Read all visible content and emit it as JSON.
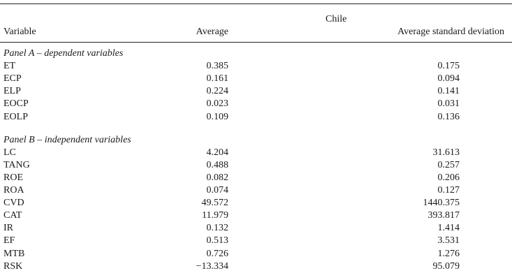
{
  "table": {
    "group": "Chile",
    "columns": [
      "Variable",
      "Average",
      "Average standard deviation"
    ],
    "panels": [
      {
        "title": "Panel A – dependent variables",
        "rows": [
          [
            "ET",
            "0.385",
            "0.175"
          ],
          [
            "ECP",
            "0.161",
            "0.094"
          ],
          [
            "ELP",
            "0.224",
            "0.141"
          ],
          [
            "EOCP",
            "0.023",
            "0.031"
          ],
          [
            "EOLP",
            "0.109",
            "0.136"
          ]
        ]
      },
      {
        "title": "Panel B – independent variables",
        "rows": [
          [
            "LC",
            "4.204",
            "31.613"
          ],
          [
            "TANG",
            "0.488",
            "0.257"
          ],
          [
            "ROE",
            "0.082",
            "0.206"
          ],
          [
            "ROA",
            "0.074",
            "0.127"
          ],
          [
            "CVD",
            "49.572",
            "1440.375"
          ],
          [
            "CAT",
            "11.979",
            "393.817"
          ],
          [
            "IR",
            "0.132",
            "1.414"
          ],
          [
            "EF",
            "0.513",
            "3.531"
          ],
          [
            "MTB",
            "0.726",
            "1.276"
          ],
          [
            "RSK",
            "−13.334",
            "95.079"
          ]
        ]
      }
    ]
  }
}
